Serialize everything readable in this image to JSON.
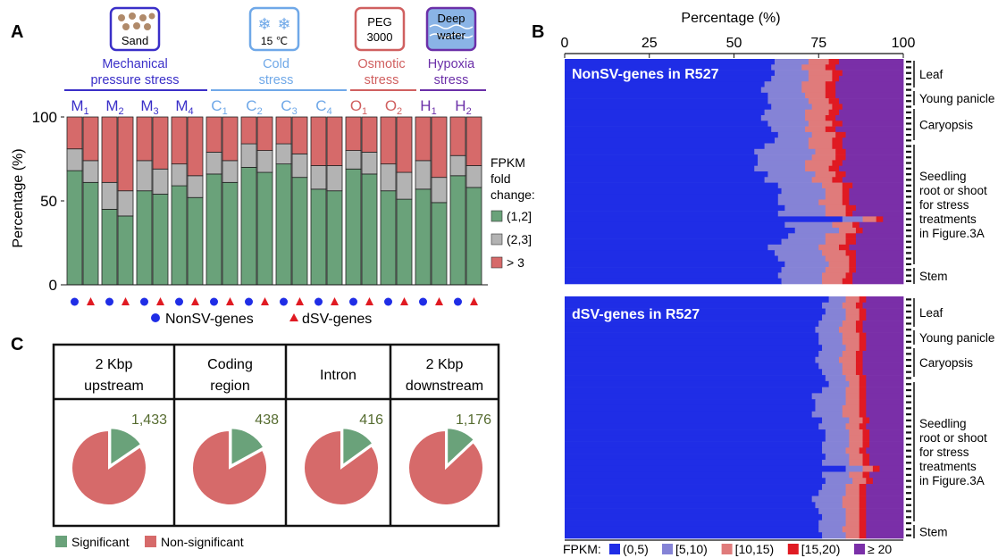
{
  "panels": {
    "A": "A",
    "B": "B",
    "C": "C"
  },
  "colors": {
    "green": "#6aa27a",
    "grey": "#b3b3b3",
    "red": "#d66a6a",
    "blue": "#1f2de6",
    "mauve": "#8583d6",
    "lightred": "#e07b7b",
    "red2": "#e01a22",
    "purple": "#7a2fa8",
    "mech": "#3a2fc8",
    "cold": "#6fa8e8",
    "osm": "#d06060",
    "hyp": "#6b2fa8",
    "sig_text": "#556b2f"
  },
  "panel_a": {
    "stress_icons": [
      {
        "label": "Sand",
        "label2": ""
      },
      {
        "label": "15 ℃",
        "label2": ""
      },
      {
        "label": "PEG",
        "label2": "3000"
      },
      {
        "label": "Deep",
        "label2": "water"
      }
    ],
    "groups": [
      {
        "line1": "Mechanical",
        "line2": "pressure stress"
      },
      {
        "line1": "Cold",
        "line2": "stress"
      },
      {
        "line1": "Osmotic",
        "line2": "stress"
      },
      {
        "line1": "Hypoxia",
        "line2": "stress"
      }
    ],
    "ylabel": "Percentage (%)",
    "yticks": [
      "0",
      "50",
      "100"
    ],
    "legend_title": [
      "FPKM",
      "fold",
      "change:"
    ],
    "legend_items": [
      "(1,2]",
      "(2,3]",
      "> 3"
    ],
    "marker_legend": [
      "NonSV-genes",
      "dSV-genes"
    ],
    "ylim": [
      0,
      100
    ]
  },
  "chart_data": [
    {
      "type": "bar",
      "stacked": true,
      "ylabel": "Percentage (%)",
      "ylim": [
        0,
        100
      ],
      "categories": [
        {
          "main": "M",
          "sub": "1"
        },
        {
          "main": "M",
          "sub": "2"
        },
        {
          "main": "M",
          "sub": "3"
        },
        {
          "main": "M",
          "sub": "4"
        },
        {
          "main": "C",
          "sub": "1"
        },
        {
          "main": "C",
          "sub": "2"
        },
        {
          "main": "C",
          "sub": "3"
        },
        {
          "main": "C",
          "sub": "4"
        },
        {
          "main": "O",
          "sub": "1"
        },
        {
          "main": "O",
          "sub": "2"
        },
        {
          "main": "H",
          "sub": "1"
        },
        {
          "main": "H",
          "sub": "2"
        }
      ],
      "series": [
        {
          "name": "(1,2]",
          "nonsv": [
            68,
            45,
            56,
            59,
            66,
            70,
            72,
            57,
            69,
            56,
            57,
            65
          ],
          "dsv": [
            61,
            41,
            54,
            52,
            61,
            67,
            64,
            56,
            66,
            51,
            49,
            58
          ]
        },
        {
          "name": "(2,3]",
          "nonsv": [
            13,
            16,
            18,
            13,
            13,
            14,
            12,
            14,
            11,
            16,
            17,
            12
          ],
          "dsv": [
            13,
            15,
            15,
            13,
            13,
            13,
            14,
            15,
            13,
            16,
            15,
            13
          ]
        },
        {
          "name": "> 3",
          "nonsv": [
            19,
            39,
            26,
            28,
            21,
            16,
            16,
            29,
            20,
            28,
            26,
            23
          ],
          "dsv": [
            26,
            44,
            31,
            35,
            26,
            20,
            22,
            29,
            21,
            33,
            36,
            29
          ]
        }
      ]
    },
    {
      "type": "bar",
      "horizontal": true,
      "stacked": true,
      "title_axis": "Percentage (%)",
      "xlim": [
        0,
        100
      ],
      "xticks": [
        "0",
        "25",
        "50",
        "75",
        "100"
      ],
      "legend_prefix": "FPKM:",
      "legend": [
        "(0,5)",
        "[5,10)",
        "[10,15)",
        "[15,20)",
        "≥ 20"
      ],
      "subplots": [
        {
          "title": "NonSV-genes in R527",
          "tissue_labels": [
            {
              "lines": [
                "Leaf"
              ]
            },
            {
              "lines": [
                "Young panicle"
              ]
            },
            {
              "lines": [
                "Caryopsis"
              ]
            },
            {
              "lines": [
                "Seedling",
                "root or shoot",
                "for stress",
                "treatments",
                "in Figure.3A"
              ]
            },
            {
              "lines": [
                "Stem"
              ]
            }
          ],
          "bins": [
            "(0,5)",
            "[5,10)",
            "[10,15)",
            "[15,20)",
            "≥ 20"
          ],
          "rows": [
            [
              62,
              10,
              6,
              3,
              19
            ],
            [
              61,
              9,
              7,
              3,
              20
            ],
            [
              62,
              10,
              7,
              3,
              18
            ],
            [
              61,
              11,
              7,
              2,
              19
            ],
            [
              59,
              11,
              7,
              3,
              20
            ],
            [
              58,
              12,
              7,
              3,
              20
            ],
            [
              60,
              11,
              6,
              3,
              20
            ],
            [
              60,
              12,
              6,
              3,
              19
            ],
            [
              61,
              12,
              6,
              3,
              18
            ],
            [
              59,
              12,
              7,
              3,
              19
            ],
            [
              58,
              13,
              6,
              3,
              20
            ],
            [
              60,
              12,
              7,
              3,
              18
            ],
            [
              61,
              10,
              6,
              3,
              20
            ],
            [
              63,
              10,
              7,
              3,
              17
            ],
            [
              62,
              10,
              7,
              3,
              18
            ],
            [
              59,
              13,
              7,
              3,
              18
            ],
            [
              56,
              18,
              6,
              3,
              17
            ],
            [
              57,
              16,
              7,
              3,
              17
            ],
            [
              57,
              14,
              8,
              3,
              18
            ],
            [
              56,
              15,
              7,
              3,
              19
            ],
            [
              60,
              14,
              6,
              3,
              17
            ],
            [
              59,
              14,
              6,
              3,
              18
            ],
            [
              63,
              13,
              6,
              3,
              15
            ],
            [
              64,
              13,
              5,
              2,
              16
            ],
            [
              63,
              14,
              5,
              2,
              16
            ],
            [
              63,
              12,
              7,
              2,
              16
            ],
            [
              65,
              12,
              6,
              3,
              14
            ],
            [
              63,
              14,
              6,
              2,
              15
            ],
            [
              82,
              6,
              4,
              2,
              6
            ],
            [
              65,
              14,
              6,
              2,
              13
            ],
            [
              68,
              13,
              5,
              2,
              12
            ],
            [
              66,
              11,
              6,
              3,
              14
            ],
            [
              64,
              13,
              6,
              3,
              14
            ],
            [
              60,
              15,
              6,
              3,
              16
            ],
            [
              62,
              14,
              7,
              3,
              14
            ],
            [
              63,
              14,
              7,
              2,
              14
            ],
            [
              65,
              13,
              6,
              2,
              14
            ],
            [
              64,
              13,
              7,
              2,
              14
            ],
            [
              63,
              13,
              7,
              2,
              15
            ],
            [
              64,
              12,
              6,
              3,
              15
            ]
          ]
        },
        {
          "title": "dSV-genes in R527",
          "tissue_labels": [
            {
              "lines": [
                "Leaf"
              ]
            },
            {
              "lines": [
                "Young panicle"
              ]
            },
            {
              "lines": [
                "Caryopsis"
              ]
            },
            {
              "lines": [
                "Seedling",
                "root or shoot",
                "for stress",
                "treatments",
                "in Figure.3A"
              ]
            },
            {
              "lines": [
                "Stem"
              ]
            }
          ],
          "bins": [
            "(0,5)",
            "[5,10)",
            "[10,15)",
            "[15,20)",
            "≥ 20"
          ],
          "rows": [
            [
              78,
              5,
              4,
              2,
              11
            ],
            [
              76,
              6,
              4,
              2,
              12
            ],
            [
              77,
              6,
              4,
              2,
              11
            ],
            [
              76,
              7,
              4,
              2,
              11
            ],
            [
              75,
              7,
              4,
              2,
              12
            ],
            [
              74,
              7,
              5,
              2,
              12
            ],
            [
              75,
              7,
              5,
              2,
              11
            ],
            [
              75,
              7,
              5,
              2,
              11
            ],
            [
              76,
              7,
              4,
              2,
              11
            ],
            [
              75,
              7,
              4,
              2,
              12
            ],
            [
              74,
              7,
              5,
              2,
              12
            ],
            [
              75,
              7,
              4,
              2,
              12
            ],
            [
              76,
              6,
              4,
              2,
              12
            ],
            [
              77,
              6,
              4,
              2,
              11
            ],
            [
              78,
              6,
              3,
              2,
              11
            ],
            [
              76,
              7,
              4,
              2,
              11
            ],
            [
              73,
              10,
              4,
              2,
              11
            ],
            [
              74,
              9,
              4,
              2,
              11
            ],
            [
              74,
              8,
              5,
              2,
              11
            ],
            [
              73,
              9,
              5,
              2,
              11
            ],
            [
              76,
              8,
              4,
              2,
              10
            ],
            [
              75,
              8,
              4,
              2,
              11
            ],
            [
              77,
              7,
              4,
              2,
              10
            ],
            [
              77,
              7,
              4,
              2,
              10
            ],
            [
              76,
              8,
              4,
              2,
              10
            ],
            [
              76,
              7,
              4,
              2,
              11
            ],
            [
              77,
              7,
              4,
              2,
              10
            ],
            [
              76,
              8,
              4,
              2,
              10
            ],
            [
              83,
              5,
              3,
              2,
              7
            ],
            [
              76,
              8,
              4,
              2,
              10
            ],
            [
              77,
              8,
              4,
              2,
              9
            ],
            [
              76,
              7,
              4,
              2,
              11
            ],
            [
              75,
              8,
              4,
              2,
              11
            ],
            [
              73,
              9,
              5,
              2,
              11
            ],
            [
              74,
              8,
              5,
              2,
              11
            ],
            [
              75,
              8,
              4,
              2,
              11
            ],
            [
              76,
              7,
              4,
              2,
              11
            ],
            [
              75,
              8,
              4,
              2,
              11
            ],
            [
              75,
              7,
              5,
              2,
              11
            ],
            [
              76,
              7,
              4,
              2,
              11
            ]
          ]
        }
      ]
    },
    {
      "type": "pie",
      "legend": [
        "Significant",
        "Non-significant"
      ],
      "regions": [
        {
          "header": [
            "2 Kbp",
            "upstream"
          ],
          "significant_count": "1,433",
          "significant_fraction": 0.155
        },
        {
          "header": [
            "Coding",
            "region"
          ],
          "significant_count": "438",
          "significant_fraction": 0.17
        },
        {
          "header": [
            "Intron"
          ],
          "significant_count": "416",
          "significant_fraction": 0.15
        },
        {
          "header": [
            "2 Kbp",
            "downstream"
          ],
          "significant_count": "1,176",
          "significant_fraction": 0.13
        }
      ]
    }
  ]
}
